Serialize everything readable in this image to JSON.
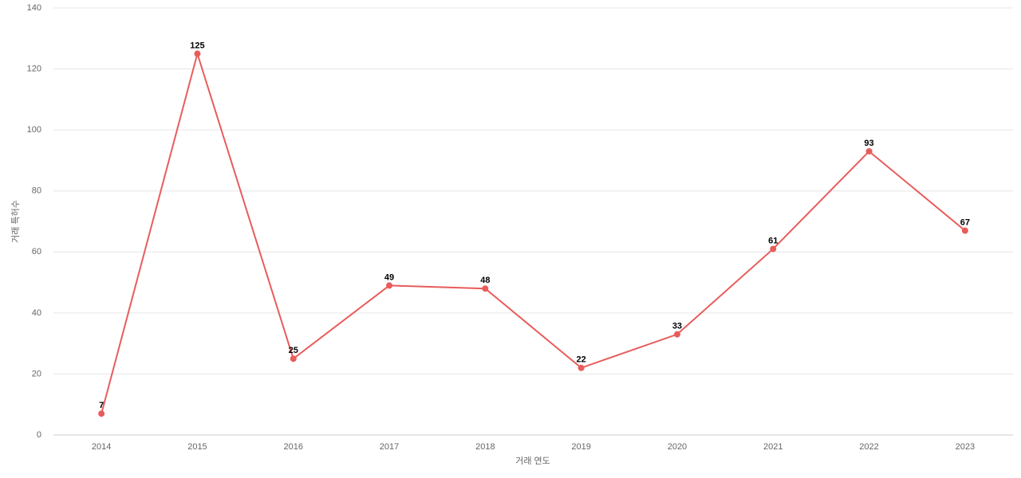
{
  "chart_data": {
    "type": "line",
    "x_label": "거래 연도",
    "y_label": "거래 특허수",
    "categories": [
      "2014",
      "2015",
      "2016",
      "2017",
      "2018",
      "2019",
      "2020",
      "2021",
      "2022",
      "2023"
    ],
    "values": [
      7,
      125,
      25,
      49,
      48,
      22,
      33,
      61,
      93,
      67
    ],
    "color": "#e85c5c",
    "ylim": [
      0,
      140
    ],
    "yticks": [
      0,
      20,
      40,
      60,
      80,
      100,
      120,
      140
    ],
    "grid": true
  }
}
